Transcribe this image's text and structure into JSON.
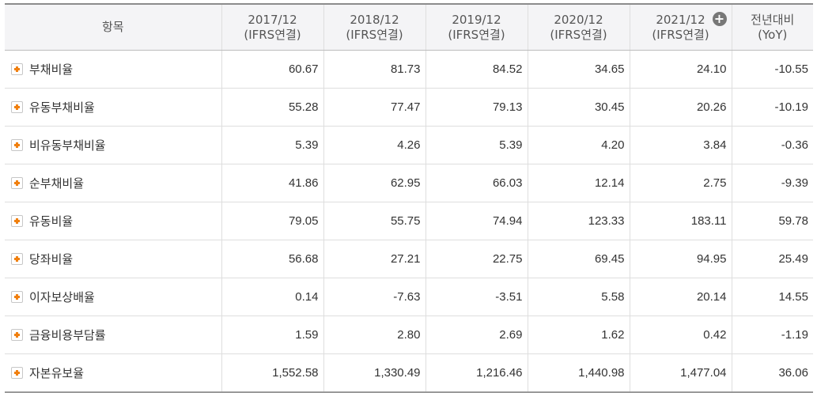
{
  "table": {
    "item_header": "항목",
    "period_headers": [
      {
        "year": "2017/12",
        "basis": "(IFRS연결)"
      },
      {
        "year": "2018/12",
        "basis": "(IFRS연결)"
      },
      {
        "year": "2019/12",
        "basis": "(IFRS연결)"
      },
      {
        "year": "2020/12",
        "basis": "(IFRS연결)"
      },
      {
        "year": "2021/12",
        "basis": "(IFRS연결)"
      }
    ],
    "yoy_header": {
      "line1": "전년대비",
      "line2": "(YoY)"
    },
    "expand_icon": "circle-plus-icon",
    "negative_color": "#d01010",
    "highlight_color": "#ffff2a",
    "rows": [
      {
        "label": "부채비율",
        "values": [
          "60.67",
          "81.73",
          "84.52",
          "34.65",
          "24.10"
        ],
        "yoy": "-10.55"
      },
      {
        "label": "유동부채비율",
        "values": [
          "55.28",
          "77.47",
          "79.13",
          "30.45",
          "20.26"
        ],
        "yoy": "-10.19"
      },
      {
        "label": "비유동부채비율",
        "values": [
          "5.39",
          "4.26",
          "5.39",
          "4.20",
          "3.84"
        ],
        "yoy": "-0.36"
      },
      {
        "label": "순부채비율",
        "values": [
          "41.86",
          "62.95",
          "66.03",
          "12.14",
          "2.75"
        ],
        "yoy": "-9.39"
      },
      {
        "label": "유동비율",
        "values": [
          "79.05",
          "55.75",
          "74.94",
          "123.33",
          "183.11"
        ],
        "yoy": "59.78"
      },
      {
        "label": "당좌비율",
        "values": [
          "56.68",
          "27.21",
          "22.75",
          "69.45",
          "94.95"
        ],
        "yoy": "25.49"
      },
      {
        "label": "이자보상배율",
        "values": [
          "0.14",
          "-7.63",
          "-3.51",
          "5.58",
          "20.14"
        ],
        "yoy": "14.55"
      },
      {
        "label": "금융비용부담률",
        "values": [
          "1.59",
          "2.80",
          "2.69",
          "1.62",
          "0.42"
        ],
        "yoy": "-1.19"
      },
      {
        "label": "자본유보율",
        "values": [
          "1,552.58",
          "1,330.49",
          "1,216.46",
          "1,440.98",
          "1,477.04"
        ],
        "yoy": "36.06"
      }
    ]
  }
}
